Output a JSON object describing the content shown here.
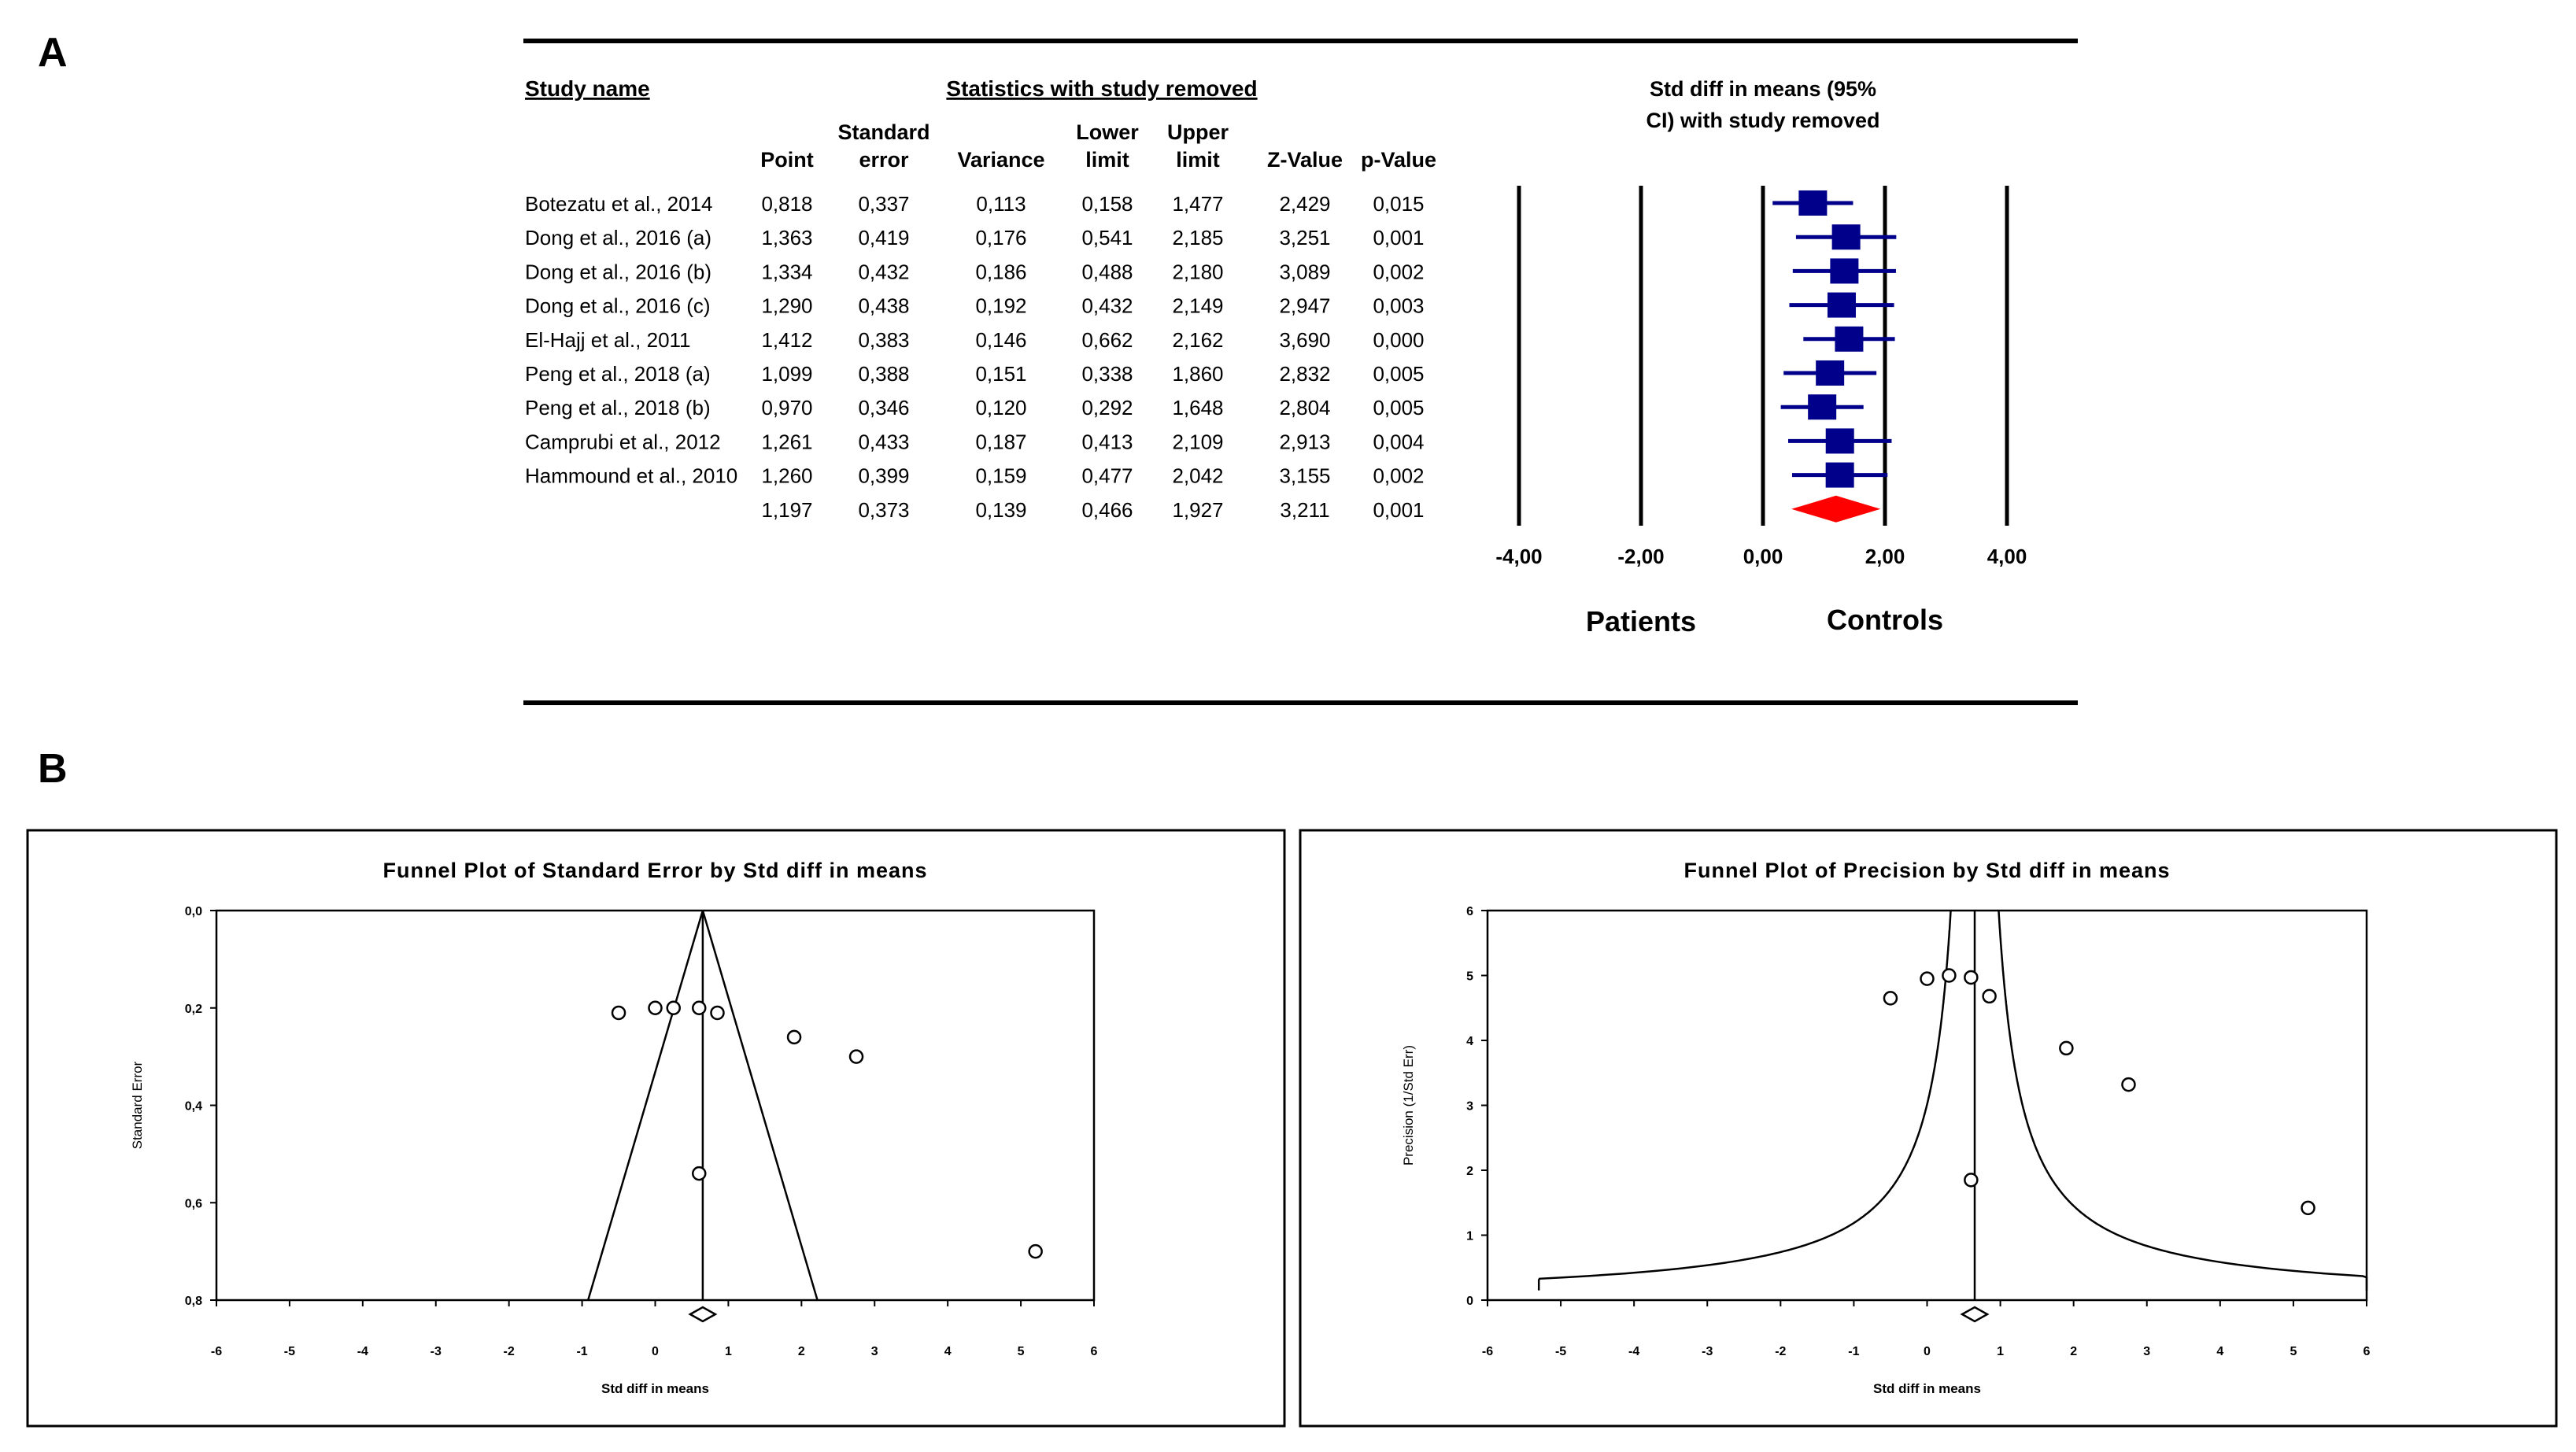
{
  "panels": {
    "a_label": "A",
    "b_label": "B"
  },
  "colors": {
    "marker": "#00008b",
    "summary": "#ff0000",
    "ink": "#000000"
  },
  "chart_data": [
    {
      "type": "table",
      "subtype": "forest-leave-one-out",
      "headers": {
        "study_name": "Study name",
        "stats_group": "Statistics with study removed",
        "plot_title_line1": "Std diff in means (95%",
        "plot_title_line2": "CI) with study removed",
        "point": "Point",
        "se_line1": "Standard",
        "se_line2": "error",
        "variance": "Variance",
        "lower_line1": "Lower",
        "lower_line2": "limit",
        "upper_line1": "Upper",
        "upper_line2": "limit",
        "z": "Z-Value",
        "p": "p-Value"
      },
      "rows": [
        {
          "study": "Botezatu et al., 2014",
          "point": "0,818",
          "se": "0,337",
          "variance": "0,113",
          "lower": "0,158",
          "upper": "1,477",
          "z": "2,429",
          "p": "0,015"
        },
        {
          "study": "Dong et al., 2016 (a)",
          "point": "1,363",
          "se": "0,419",
          "variance": "0,176",
          "lower": "0,541",
          "upper": "2,185",
          "z": "3,251",
          "p": "0,001"
        },
        {
          "study": "Dong et al., 2016 (b)",
          "point": "1,334",
          "se": "0,432",
          "variance": "0,186",
          "lower": "0,488",
          "upper": "2,180",
          "z": "3,089",
          "p": "0,002"
        },
        {
          "study": "Dong et al., 2016 (c)",
          "point": "1,290",
          "se": "0,438",
          "variance": "0,192",
          "lower": "0,432",
          "upper": "2,149",
          "z": "2,947",
          "p": "0,003"
        },
        {
          "study": "El-Hajj et al., 2011",
          "point": "1,412",
          "se": "0,383",
          "variance": "0,146",
          "lower": "0,662",
          "upper": "2,162",
          "z": "3,690",
          "p": "0,000"
        },
        {
          "study": "Peng et al., 2018 (a)",
          "point": "1,099",
          "se": "0,388",
          "variance": "0,151",
          "lower": "0,338",
          "upper": "1,860",
          "z": "2,832",
          "p": "0,005"
        },
        {
          "study": "Peng et al., 2018 (b)",
          "point": "0,970",
          "se": "0,346",
          "variance": "0,120",
          "lower": "0,292",
          "upper": "1,648",
          "z": "2,804",
          "p": "0,005"
        },
        {
          "study": "Camprubi et al., 2012",
          "point": "1,261",
          "se": "0,433",
          "variance": "0,187",
          "lower": "0,413",
          "upper": "2,109",
          "z": "2,913",
          "p": "0,004"
        },
        {
          "study": "Hammound et al., 2010",
          "point": "1,260",
          "se": "0,399",
          "variance": "0,159",
          "lower": "0,477",
          "upper": "2,042",
          "z": "3,155",
          "p": "0,002"
        }
      ],
      "summary": {
        "point": "1,197",
        "se": "0,373",
        "variance": "0,139",
        "lower": "0,466",
        "upper": "1,927",
        "z": "3,211",
        "p": "0,001"
      },
      "axis": {
        "range": [
          -4,
          4
        ],
        "ticks": [
          -4,
          -2,
          0,
          2,
          4
        ],
        "tick_labels": [
          "-4,00",
          "-2,00",
          "0,00",
          "2,00",
          "4,00"
        ],
        "left_label": "Patients",
        "right_label": "Controls"
      }
    },
    {
      "type": "scatter",
      "subtype": "funnel-standard-error",
      "title": "Funnel Plot of Standard Error by Std diff in means",
      "xlabel": "Std diff in means",
      "ylabel": "Standard Error",
      "xlim": [
        -6,
        6
      ],
      "ylim": [
        0.8,
        0
      ],
      "x_ticks": [
        -6,
        -5,
        -4,
        -3,
        -2,
        -1,
        0,
        1,
        2,
        3,
        4,
        5,
        6
      ],
      "x_tick_labels": [
        "-6",
        "-5",
        "-4",
        "-3",
        "-2",
        "-1",
        "0",
        "1",
        "2",
        "3",
        "4",
        "5",
        "6"
      ],
      "y_ticks": [
        0,
        0.2,
        0.4,
        0.6,
        0.8
      ],
      "y_tick_labels": [
        "0,0",
        "0,2",
        "0,4",
        "0,6",
        "0,8"
      ],
      "center": 0.65,
      "funnel_apex_se": 0,
      "funnel_base_se": 0.8,
      "summary_marker": 0.65,
      "points": [
        {
          "x": -0.5,
          "y": 0.21
        },
        {
          "x": 0.0,
          "y": 0.2
        },
        {
          "x": 0.25,
          "y": 0.2
        },
        {
          "x": 0.6,
          "y": 0.2
        },
        {
          "x": 0.85,
          "y": 0.21
        },
        {
          "x": 1.9,
          "y": 0.26
        },
        {
          "x": 2.75,
          "y": 0.3
        },
        {
          "x": 0.6,
          "y": 0.54
        },
        {
          "x": 5.2,
          "y": 0.7
        }
      ]
    },
    {
      "type": "scatter",
      "subtype": "funnel-precision",
      "title": "Funnel Plot of Precision by Std diff in means",
      "xlabel": "Std diff in means",
      "ylabel": "Precision (1/Std Err)",
      "xlim": [
        -6,
        6
      ],
      "ylim": [
        0,
        6
      ],
      "x_ticks": [
        -6,
        -5,
        -4,
        -3,
        -2,
        -1,
        0,
        1,
        2,
        3,
        4,
        5,
        6
      ],
      "x_tick_labels": [
        "-6",
        "-5",
        "-4",
        "-3",
        "-2",
        "-1",
        "0",
        "1",
        "2",
        "3",
        "4",
        "5",
        "6"
      ],
      "y_ticks": [
        0,
        1,
        2,
        3,
        4,
        5,
        6
      ],
      "y_tick_labels": [
        "0",
        "1",
        "2",
        "3",
        "4",
        "5",
        "6"
      ],
      "center": 0.65,
      "summary_marker": 0.65,
      "points": [
        {
          "x": -0.5,
          "y": 4.65
        },
        {
          "x": 0.0,
          "y": 4.95
        },
        {
          "x": 0.3,
          "y": 5.0
        },
        {
          "x": 0.6,
          "y": 4.97
        },
        {
          "x": 0.85,
          "y": 4.68
        },
        {
          "x": 1.9,
          "y": 3.88
        },
        {
          "x": 2.75,
          "y": 3.32
        },
        {
          "x": 0.6,
          "y": 1.85
        },
        {
          "x": 5.2,
          "y": 1.42
        }
      ]
    }
  ]
}
